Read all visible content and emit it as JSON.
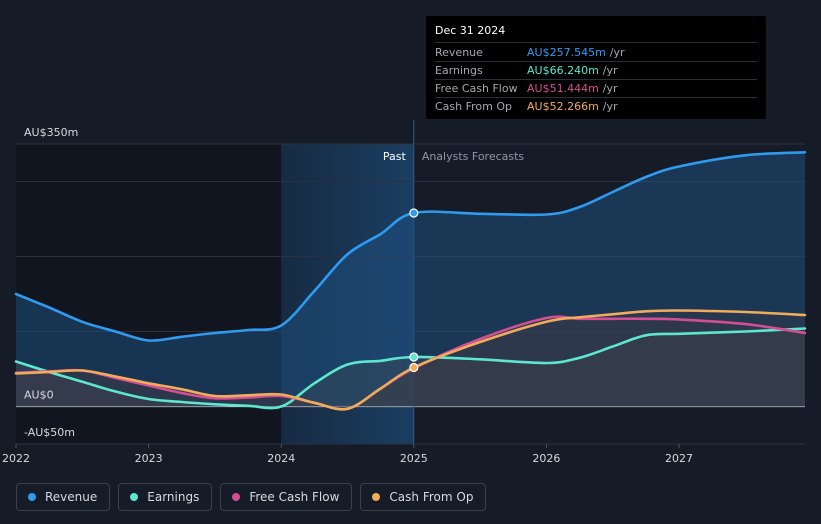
{
  "tooltip": {
    "date": "Dec 31 2024",
    "rows": [
      {
        "label": "Revenue",
        "value": "AU$257.545m",
        "unit": "/yr",
        "color": "#2f9bef"
      },
      {
        "label": "Earnings",
        "value": "AU$66.240m",
        "unit": "/yr",
        "color": "#5ee6cf"
      },
      {
        "label": "Free Cash Flow",
        "value": "AU$51.444m",
        "unit": "/yr",
        "color": "#d44f92"
      },
      {
        "label": "Cash From Op",
        "value": "AU$52.266m",
        "unit": "/yr",
        "color": "#f0ab5b"
      }
    ]
  },
  "legend": [
    {
      "label": "Revenue",
      "color": "#2f9bef"
    },
    {
      "label": "Earnings",
      "color": "#5ee6cf"
    },
    {
      "label": "Free Cash Flow",
      "color": "#d44f92"
    },
    {
      "label": "Cash From Op",
      "color": "#f0ab5b"
    }
  ],
  "chart_data": {
    "type": "line",
    "title": "",
    "xlabel": "",
    "ylabel": "",
    "ylim": [
      -50,
      350
    ],
    "xlim": [
      2022.0,
      2027.95
    ],
    "y_tick_labels": [
      {
        "value": 350,
        "label": "AU$350m"
      },
      {
        "value": 0,
        "label": "AU$0"
      },
      {
        "value": -50,
        "label": "-AU$50m"
      }
    ],
    "x_ticks": [
      {
        "value": 2022,
        "label": "2022"
      },
      {
        "value": 2023,
        "label": "2023"
      },
      {
        "value": 2024,
        "label": "2024"
      },
      {
        "value": 2025,
        "label": "2025"
      },
      {
        "value": 2026,
        "label": "2026"
      },
      {
        "value": 2027,
        "label": "2027"
      }
    ],
    "gridlines_y": [
      350,
      300,
      200,
      100,
      0
    ],
    "past_label": "Past",
    "forecast_label": "Analysts Forecasts",
    "past_highlight_start": 2024.0,
    "divider_x": 2025.0,
    "series": [
      {
        "name": "Revenue",
        "color": "#2f9bef",
        "x": [
          2022.0,
          2022.25,
          2022.5,
          2022.75,
          2023.0,
          2023.25,
          2023.5,
          2023.75,
          2024.0,
          2024.25,
          2024.5,
          2024.75,
          2025.0,
          2025.5,
          2026.0,
          2026.25,
          2026.5,
          2026.75,
          2027.0,
          2027.5,
          2027.95
        ],
        "y": [
          150,
          132,
          113,
          100,
          88,
          93,
          98,
          102,
          108,
          154,
          203,
          230,
          258,
          257,
          256,
          266,
          286,
          306,
          320,
          335,
          339
        ]
      },
      {
        "name": "Earnings",
        "color": "#5ee6cf",
        "x": [
          2022.0,
          2022.25,
          2022.5,
          2022.75,
          2023.0,
          2023.25,
          2023.5,
          2023.75,
          2024.0,
          2024.25,
          2024.5,
          2024.75,
          2025.0,
          2025.5,
          2026.0,
          2026.25,
          2026.5,
          2026.75,
          2027.0,
          2027.5,
          2027.95
        ],
        "y": [
          60,
          46,
          33,
          20,
          10,
          6,
          3,
          1,
          0,
          31,
          56,
          61,
          66,
          63,
          58,
          65,
          80,
          95,
          97,
          100,
          104
        ]
      },
      {
        "name": "Free Cash Flow",
        "color": "#d44f92",
        "x": [
          2022.0,
          2022.25,
          2022.5,
          2022.75,
          2023.0,
          2023.25,
          2023.5,
          2023.75,
          2024.0,
          2024.25,
          2024.5,
          2024.75,
          2025.0,
          2025.5,
          2026.0,
          2026.25,
          2026.5,
          2026.75,
          2027.0,
          2027.5,
          2027.95
        ],
        "y": [
          45,
          47,
          48,
          38,
          28,
          18,
          11,
          12,
          14,
          5,
          -3,
          24,
          51,
          90,
          118,
          117,
          117,
          117,
          116,
          110,
          98
        ]
      },
      {
        "name": "Cash From Op",
        "color": "#f0ab5b",
        "x": [
          2022.0,
          2022.25,
          2022.5,
          2022.75,
          2023.0,
          2023.25,
          2023.5,
          2023.75,
          2024.0,
          2024.25,
          2024.5,
          2024.75,
          2025.0,
          2025.5,
          2026.0,
          2026.25,
          2026.5,
          2026.75,
          2027.0,
          2027.5,
          2027.95
        ],
        "y": [
          44,
          46,
          48,
          40,
          31,
          23,
          14,
          15,
          16,
          5,
          -3,
          24,
          52,
          86,
          113,
          119,
          123,
          127,
          128,
          126,
          122
        ]
      }
    ],
    "highlight_points": [
      {
        "series": "Revenue",
        "x": 2025.0,
        "y": 258
      },
      {
        "series": "Earnings",
        "x": 2025.0,
        "y": 66
      },
      {
        "series": "Cash From Op",
        "x": 2025.0,
        "y": 52
      }
    ]
  }
}
